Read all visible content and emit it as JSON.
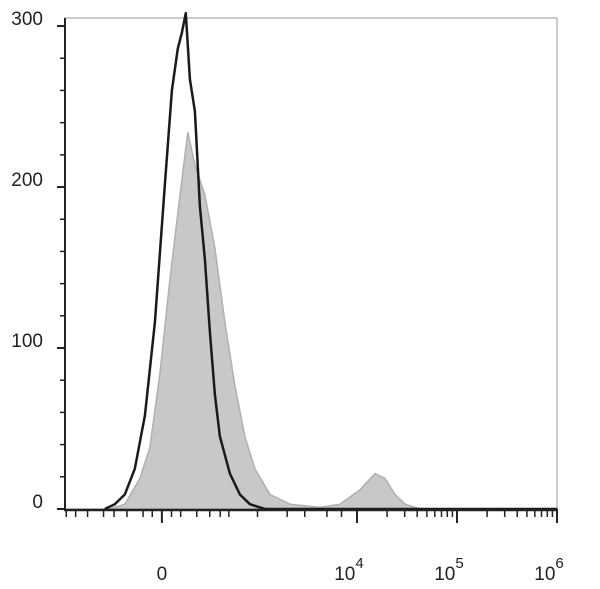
{
  "chart_data": {
    "type": "histogram-overlay",
    "xscale": "biexponential",
    "xlim": [
      -1030,
      1000000
    ],
    "xticks": [
      0,
      {
        "value": 10000,
        "label": "10",
        "exponent": "4"
      },
      {
        "value": 100000,
        "label": "10",
        "exponent": "5"
      },
      {
        "value": 1000000,
        "label": "10",
        "exponent": "6"
      }
    ],
    "xminorticks": [
      -1000,
      -800,
      -600,
      -400,
      -300,
      -200,
      -100,
      -50,
      50,
      100,
      200,
      300,
      400,
      500,
      1000,
      2000,
      3000,
      5000,
      7000,
      20000,
      30000,
      40000,
      50000,
      60000,
      70000,
      80000,
      90000,
      200000,
      300000,
      400000,
      500000,
      600000,
      700000,
      800000,
      900000
    ],
    "ylim": [
      0,
      305
    ],
    "yticks": [
      0,
      100,
      200,
      300
    ],
    "yminorticks": [
      20,
      40,
      60,
      80,
      120,
      140,
      160,
      180,
      220,
      240,
      260,
      280
    ],
    "series": [
      {
        "color": "#c8c8c8",
        "style": "filled",
        "x": [
          -338,
          -215,
          -118,
          -63,
          -10,
          41,
          96,
          142,
          187,
          260,
          347,
          452,
          580,
          741,
          941,
          1340,
          2133,
          4272,
          6765,
          10730,
          15165,
          19085,
          24035,
          30285,
          42760,
          1000000
        ],
        "values": [
          0,
          3,
          19,
          38,
          84,
          142,
          195,
          234,
          214,
          195,
          162,
          116,
          77,
          45,
          25,
          9,
          3,
          1,
          3,
          12,
          22,
          19,
          9,
          3,
          0,
          0
        ]
      },
      {
        "color": "#1a1a1a",
        "style": "line",
        "x": [
          -387,
          -293,
          -215,
          -149,
          -90,
          -36,
          15,
          52,
          84,
          107,
          130,
          155,
          187,
          222,
          260,
          302,
          347,
          396,
          513,
          656,
          836,
          1192,
          1000000
        ],
        "values": [
          0,
          3,
          9,
          25,
          58,
          116,
          201,
          260,
          286,
          296,
          308,
          267,
          247,
          188,
          155,
          109,
          71,
          45,
          22,
          9,
          3,
          0,
          0
        ]
      }
    ]
  }
}
